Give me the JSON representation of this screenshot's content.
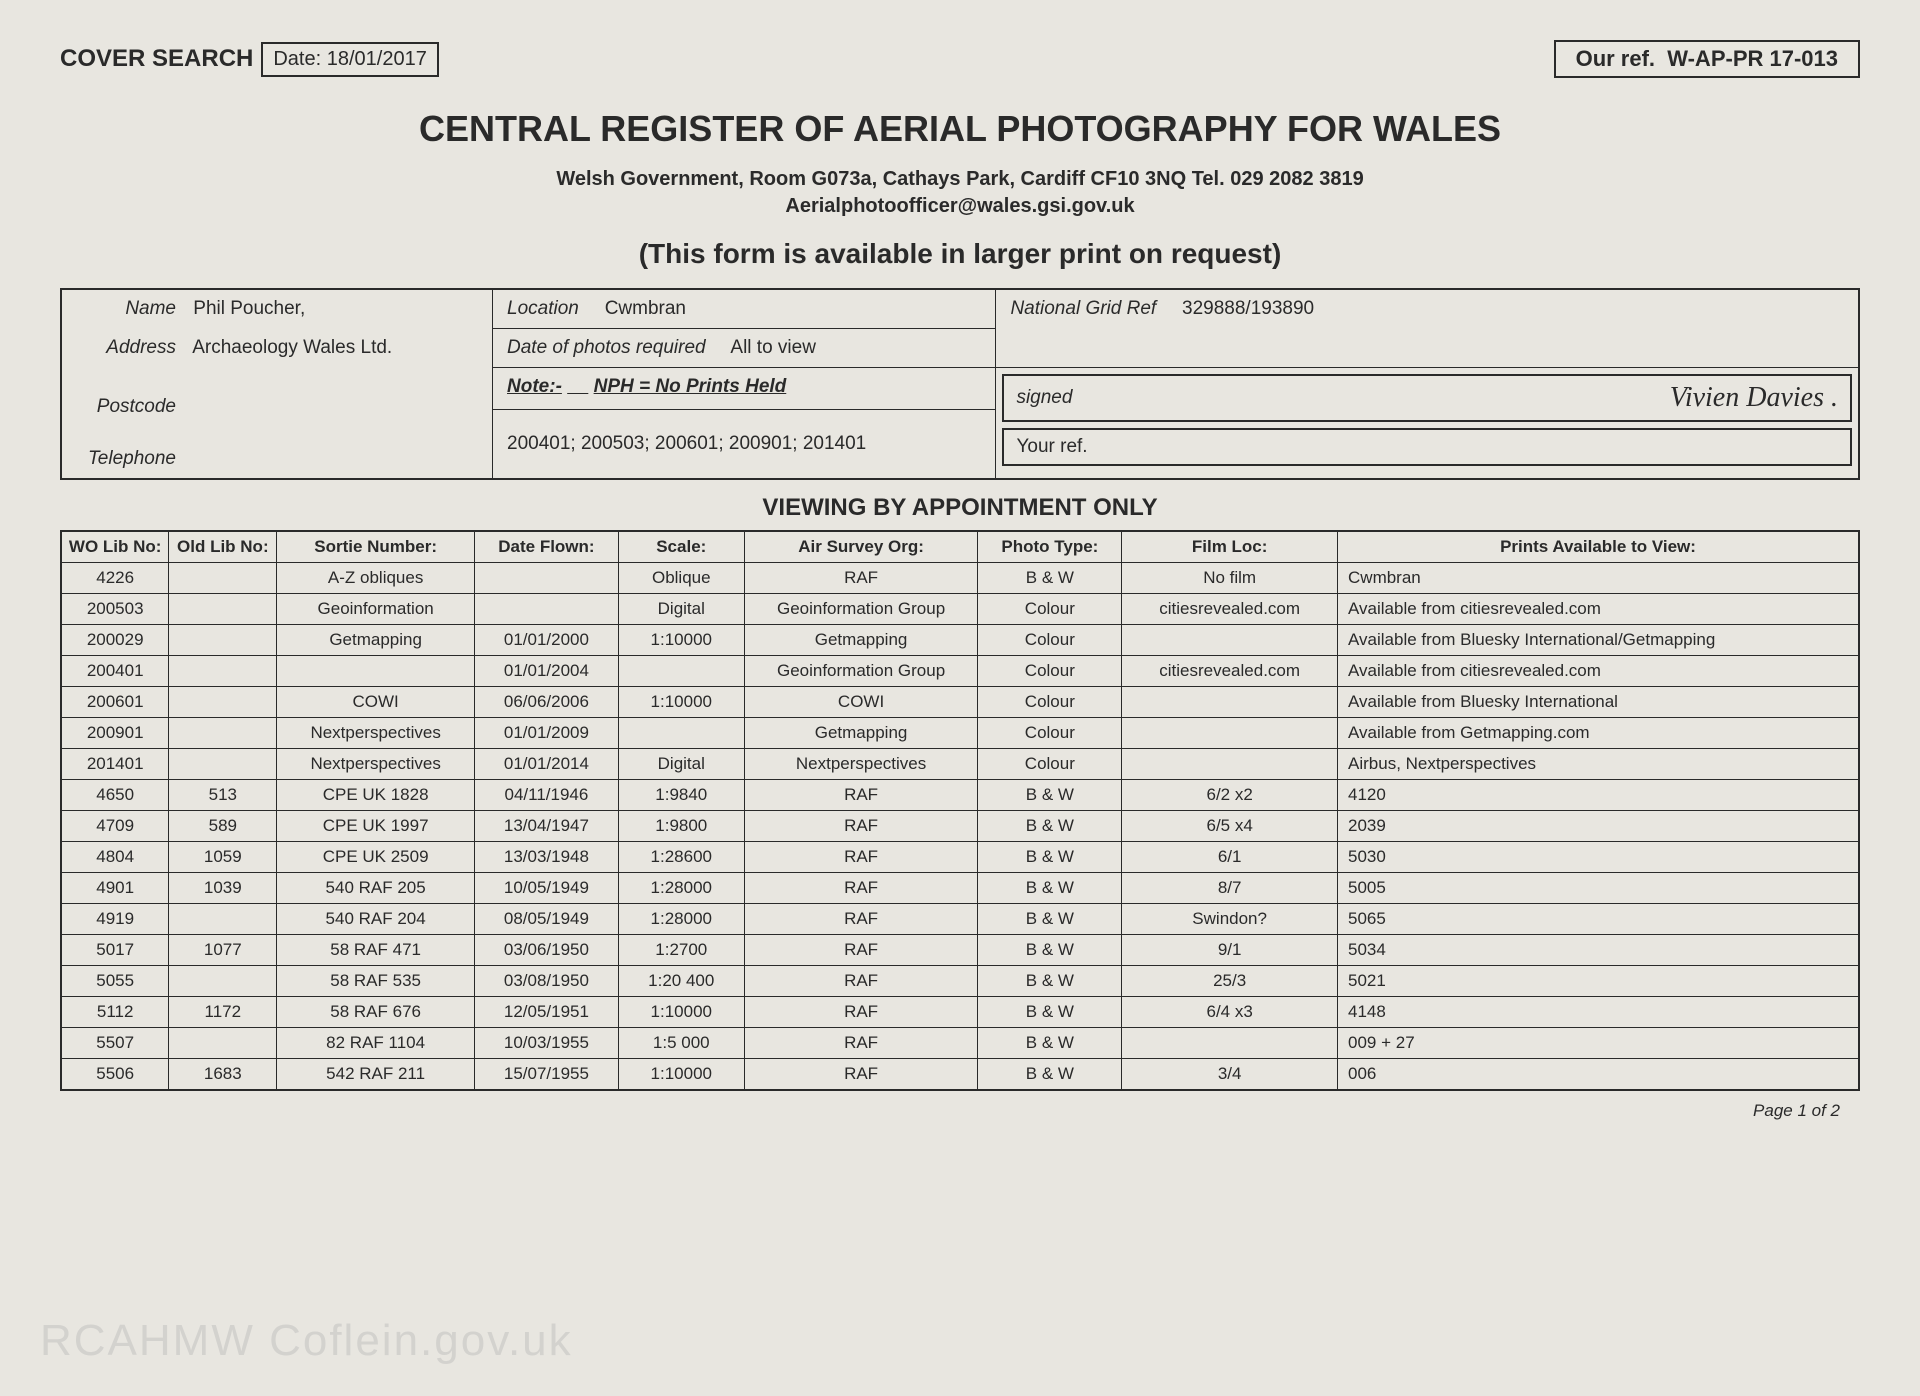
{
  "header": {
    "cover_search_label": "COVER SEARCH",
    "date_label": "Date:",
    "date_value": "18/01/2017",
    "our_ref_label": "Our ref.",
    "our_ref_value": "W-AP-PR 17-013"
  },
  "title": "CENTRAL REGISTER OF AERIAL PHOTOGRAPHY FOR WALES",
  "address_line": "Welsh Government, Room G073a, Cathays Park, Cardiff CF10 3NQ    Tel. 029 2082 3819",
  "email_line": "Aerialphotoofficer@wales.gsi.gov.uk",
  "form_note": "(This form is available in larger print on request)",
  "info": {
    "name_label": "Name",
    "name_value": "Phil Poucher,",
    "address_label": "Address",
    "address_value": "Archaeology Wales Ltd.",
    "postcode_label": "Postcode",
    "telephone_label": "Telephone",
    "location_label": "Location",
    "location_value": "Cwmbran",
    "date_photos_label": "Date of photos required",
    "date_photos_value": "All to view",
    "ngr_label": "National Grid Ref",
    "ngr_value": "329888/193890",
    "note_label": "Note:-",
    "note_value": "NPH = No Prints Held",
    "codes": "200401; 200503; 200601; 200901; 201401",
    "signed_label": "signed",
    "signature": "Vivien Davies .",
    "your_ref_label": "Your ref."
  },
  "viewing_title": "VIEWING BY APPOINTMENT ONLY",
  "table": {
    "columns": [
      "WO Lib No:",
      "Old Lib No:",
      "Sortie Number:",
      "Date Flown:",
      "Scale:",
      "Air Survey Org:",
      "Photo Type:",
      "Film Loc:",
      "Prints Available to View:"
    ],
    "col_widths": [
      "6%",
      "6%",
      "11%",
      "8%",
      "7%",
      "13%",
      "8%",
      "12%",
      "29%"
    ],
    "rows": [
      [
        "4226",
        "",
        "A-Z obliques",
        "",
        "Oblique",
        "RAF",
        "B & W",
        "No film",
        "Cwmbran"
      ],
      [
        "200503",
        "",
        "Geoinformation",
        "",
        "Digital",
        "Geoinformation Group",
        "Colour",
        "citiesrevealed.com",
        "Available from citiesrevealed.com"
      ],
      [
        "200029",
        "",
        "Getmapping",
        "01/01/2000",
        "1:10000",
        "Getmapping",
        "Colour",
        "",
        "Available from Bluesky International/Getmapping"
      ],
      [
        "200401",
        "",
        "",
        "01/01/2004",
        "",
        "Geoinformation Group",
        "Colour",
        "citiesrevealed.com",
        "Available from citiesrevealed.com"
      ],
      [
        "200601",
        "",
        "COWI",
        "06/06/2006",
        "1:10000",
        "COWI",
        "Colour",
        "",
        "Available from Bluesky International"
      ],
      [
        "200901",
        "",
        "Nextperspectives",
        "01/01/2009",
        "",
        "Getmapping",
        "Colour",
        "",
        "Available from Getmapping.com"
      ],
      [
        "201401",
        "",
        "Nextperspectives",
        "01/01/2014",
        "Digital",
        "Nextperspectives",
        "Colour",
        "",
        "Airbus, Nextperspectives"
      ],
      [
        "4650",
        "513",
        "CPE UK 1828",
        "04/11/1946",
        "1:9840",
        "RAF",
        "B & W",
        "6/2 x2",
        "4120"
      ],
      [
        "4709",
        "589",
        "CPE UK 1997",
        "13/04/1947",
        "1:9800",
        "RAF",
        "B & W",
        "6/5 x4",
        "2039"
      ],
      [
        "4804",
        "1059",
        "CPE UK 2509",
        "13/03/1948",
        "1:28600",
        "RAF",
        "B & W",
        "6/1",
        "5030"
      ],
      [
        "4901",
        "1039",
        "540 RAF 205",
        "10/05/1949",
        "1:28000",
        "RAF",
        "B & W",
        "8/7",
        "5005"
      ],
      [
        "4919",
        "",
        "540 RAF 204",
        "08/05/1949",
        "1:28000",
        "RAF",
        "B & W",
        "Swindon?",
        "5065"
      ],
      [
        "5017",
        "1077",
        "58 RAF 471",
        "03/06/1950",
        "1:2700",
        "RAF",
        "B & W",
        "9/1",
        "5034"
      ],
      [
        "5055",
        "",
        "58 RAF 535",
        "03/08/1950",
        "1:20 400",
        "RAF",
        "B & W",
        "25/3",
        "5021"
      ],
      [
        "5112",
        "1172",
        "58 RAF 676",
        "12/05/1951",
        "1:10000",
        "RAF",
        "B & W",
        "6/4 x3",
        "4148"
      ],
      [
        "5507",
        "",
        "82 RAF 1104",
        "10/03/1955",
        "1:5 000",
        "RAF",
        "B & W",
        "",
        "009 + 27"
      ],
      [
        "5506",
        "1683",
        "542 RAF 211",
        "15/07/1955",
        "1:10000",
        "RAF",
        "B & W",
        "3/4",
        "006"
      ]
    ]
  },
  "page_number": "Page 1 of 2",
  "watermark": "RCAHMW   Coflein.gov.uk"
}
